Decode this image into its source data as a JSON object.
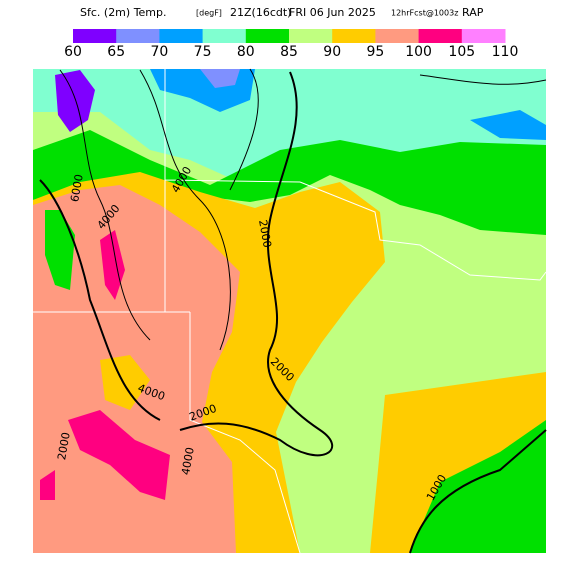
{
  "header": {
    "title_parts": [
      "Sfc. (2m) Temp.",
      "[degF]",
      "21Z(16cdt)",
      "FRI 06 Jun 2025",
      "12hrFcst@1003z",
      "RAP"
    ]
  },
  "colorbar": {
    "labels": [
      60,
      65,
      70,
      75,
      80,
      85,
      90,
      95,
      100,
      105,
      110
    ],
    "colors": [
      "#7f00ff",
      "#7f90ff",
      "#00a0ff",
      "#80ffd0",
      "#00e000",
      "#c0ff80",
      "#ffcc00",
      "#ff9a80",
      "#ff0080",
      "#ff80ff"
    ]
  },
  "contour_labels": [
    "6000",
    "4000",
    "4000",
    "2000",
    "4000",
    "2000",
    "2000",
    "2000",
    "4000",
    "1000"
  ]
}
